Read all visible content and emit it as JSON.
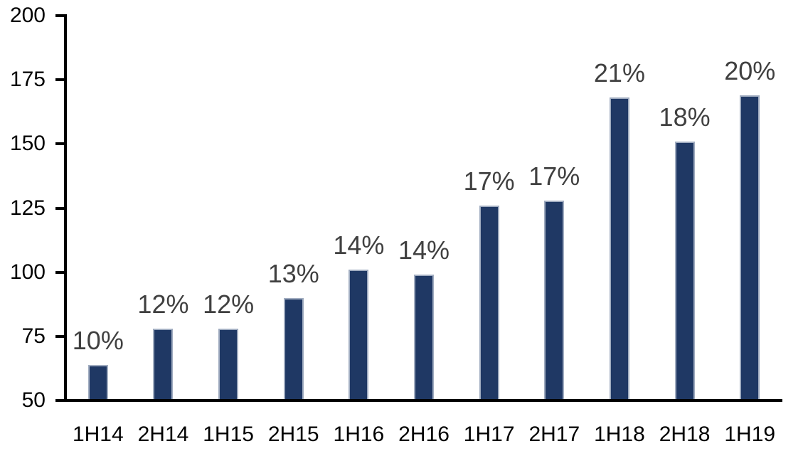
{
  "chart_data": {
    "type": "bar",
    "categories": [
      "1H14",
      "2H14",
      "1H15",
      "2H15",
      "1H16",
      "2H16",
      "1H17",
      "2H17",
      "1H18",
      "2H18",
      "1H19"
    ],
    "values": [
      64,
      78,
      78,
      90,
      101,
      99,
      126,
      128,
      168,
      151,
      169
    ],
    "data_labels": [
      "10%",
      "12%",
      "12%",
      "13%",
      "14%",
      "14%",
      "17%",
      "17%",
      "21%",
      "18%",
      "20%"
    ],
    "title": "",
    "xlabel": "",
    "ylabel": "",
    "ylim": [
      50,
      200
    ],
    "yticks": [
      50,
      75,
      100,
      125,
      150,
      175,
      200
    ],
    "grid": false,
    "legend": false,
    "colors": {
      "bar_fill": "#1F3864",
      "bar_border": "#A0ACC0",
      "data_label": "#404040",
      "axis_line": "#000000",
      "tick_label": "#000000",
      "background": "#FFFFFF"
    }
  }
}
